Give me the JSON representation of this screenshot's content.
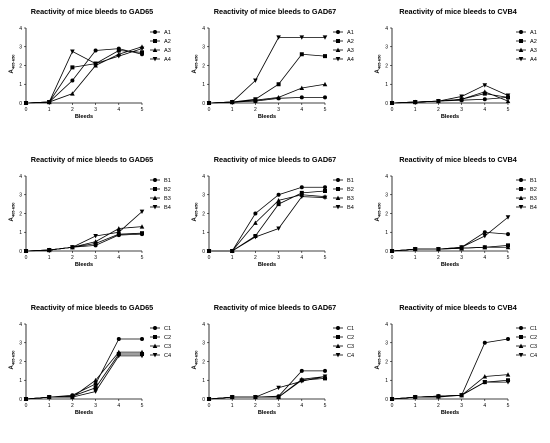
{
  "chart_data": [
    {
      "type": "line",
      "title": "Reactivity of mice bleeds to GAD65",
      "xlabel": "Bleeds",
      "ylabel": "A",
      "ylabel_sub": "405-650",
      "x": [
        0,
        1,
        2,
        3,
        4,
        5
      ],
      "xlim": [
        0,
        5
      ],
      "ylim": [
        0,
        4
      ],
      "series": [
        {
          "name": "A1",
          "marker": "circle",
          "values": [
            0,
            0.05,
            1.2,
            2.8,
            2.9,
            2.6
          ]
        },
        {
          "name": "A2",
          "marker": "square",
          "values": [
            0,
            0.05,
            1.9,
            2.1,
            2.8,
            2.7
          ]
        },
        {
          "name": "A3",
          "marker": "triangle-up",
          "values": [
            0,
            0.05,
            0.5,
            2.0,
            2.6,
            3.0
          ]
        },
        {
          "name": "A4",
          "marker": "triangle-down",
          "values": [
            0,
            0.05,
            2.75,
            2.1,
            2.5,
            2.9
          ]
        }
      ]
    },
    {
      "type": "line",
      "title": "Reactivity of mice bleeds to GAD67",
      "xlabel": "Bleeds",
      "ylabel": "A",
      "ylabel_sub": "405-650",
      "x": [
        0,
        1,
        2,
        3,
        4,
        5
      ],
      "xlim": [
        0,
        5
      ],
      "ylim": [
        0,
        4
      ],
      "series": [
        {
          "name": "A1",
          "marker": "circle",
          "values": [
            0,
            0.05,
            0.1,
            0.25,
            0.3,
            0.3
          ]
        },
        {
          "name": "A2",
          "marker": "square",
          "values": [
            0,
            0.05,
            0.2,
            1.0,
            2.6,
            2.5
          ]
        },
        {
          "name": "A3",
          "marker": "triangle-up",
          "values": [
            0,
            0.05,
            0.15,
            0.3,
            0.8,
            1.0
          ]
        },
        {
          "name": "A4",
          "marker": "triangle-down",
          "values": [
            0,
            0.05,
            1.2,
            3.5,
            3.5,
            3.5
          ]
        }
      ]
    },
    {
      "type": "line",
      "title": "Reactivity of mice bleeds to CVB4",
      "xlabel": "Bleeds",
      "ylabel": "A",
      "ylabel_sub": "405-650",
      "x": [
        0,
        1,
        2,
        3,
        4,
        5
      ],
      "xlim": [
        0,
        5
      ],
      "ylim": [
        0,
        4
      ],
      "series": [
        {
          "name": "A1",
          "marker": "circle",
          "values": [
            0,
            0.05,
            0.1,
            0.15,
            0.2,
            0.3
          ]
        },
        {
          "name": "A2",
          "marker": "square",
          "values": [
            0,
            0.05,
            0.1,
            0.2,
            0.5,
            0.3
          ]
        },
        {
          "name": "A3",
          "marker": "triangle-up",
          "values": [
            0,
            0.05,
            0.1,
            0.2,
            0.6,
            0.1
          ]
        },
        {
          "name": "A4",
          "marker": "triangle-down",
          "values": [
            0,
            0.05,
            0.1,
            0.35,
            0.95,
            0.4
          ]
        }
      ]
    },
    {
      "type": "line",
      "title": "Reactivity of mice bleeds to GAD65",
      "xlabel": "Bleeds",
      "ylabel": "A",
      "ylabel_sub": "405-650",
      "x": [
        0,
        1,
        2,
        3,
        4,
        5
      ],
      "xlim": [
        0,
        5
      ],
      "ylim": [
        0,
        4
      ],
      "series": [
        {
          "name": "B1",
          "marker": "circle",
          "values": [
            0,
            0.05,
            0.2,
            0.3,
            0.85,
            0.9
          ]
        },
        {
          "name": "B2",
          "marker": "square",
          "values": [
            0,
            0.05,
            0.2,
            0.4,
            0.9,
            0.95
          ]
        },
        {
          "name": "B3",
          "marker": "triangle-up",
          "values": [
            0,
            0.05,
            0.2,
            0.5,
            1.2,
            1.3
          ]
        },
        {
          "name": "B4",
          "marker": "triangle-down",
          "values": [
            0,
            0.05,
            0.2,
            0.8,
            1.0,
            2.1
          ]
        }
      ]
    },
    {
      "type": "line",
      "title": "Reactivity of mice bleeds to GAD67",
      "xlabel": "Bleeds",
      "ylabel": "A",
      "ylabel_sub": "405-650",
      "x": [
        0,
        1,
        2,
        3,
        4,
        5
      ],
      "xlim": [
        0,
        5
      ],
      "ylim": [
        0,
        4
      ],
      "series": [
        {
          "name": "B1",
          "marker": "circle",
          "values": [
            0,
            0,
            2.0,
            3.0,
            3.4,
            3.4
          ]
        },
        {
          "name": "B2",
          "marker": "square",
          "values": [
            0,
            0,
            0.8,
            2.5,
            3.1,
            3.2
          ]
        },
        {
          "name": "B3",
          "marker": "triangle-up",
          "values": [
            0,
            0,
            1.5,
            2.7,
            3.0,
            2.9
          ]
        },
        {
          "name": "B4",
          "marker": "triangle-down",
          "values": [
            0,
            0,
            0.75,
            1.2,
            2.9,
            2.85
          ]
        }
      ]
    },
    {
      "type": "line",
      "title": "Reactivity of mice bleeds to CVB4",
      "xlabel": "Bleeds",
      "ylabel": "A",
      "ylabel_sub": "405-650",
      "x": [
        0,
        1,
        2,
        3,
        4,
        5
      ],
      "xlim": [
        0,
        5
      ],
      "ylim": [
        0,
        4
      ],
      "series": [
        {
          "name": "B1",
          "marker": "circle",
          "values": [
            0,
            0.1,
            0.1,
            0.2,
            1.0,
            0.9
          ]
        },
        {
          "name": "B2",
          "marker": "square",
          "values": [
            0,
            0.1,
            0.1,
            0.15,
            0.2,
            0.3
          ]
        },
        {
          "name": "B3",
          "marker": "triangle-up",
          "values": [
            0,
            0.1,
            0.1,
            0.15,
            0.2,
            0.2
          ]
        },
        {
          "name": "B4",
          "marker": "triangle-down",
          "values": [
            0,
            0.1,
            0.1,
            0.2,
            0.8,
            1.8
          ]
        }
      ]
    },
    {
      "type": "line",
      "title": "Reactivity of mice bleeds to GAD65",
      "xlabel": "Bleeds",
      "ylabel": "A",
      "ylabel_sub": "405-650",
      "x": [
        0,
        1,
        2,
        3,
        4,
        5
      ],
      "xlim": [
        0,
        5
      ],
      "ylim": [
        0,
        4
      ],
      "series": [
        {
          "name": "C1",
          "marker": "circle",
          "values": [
            0,
            0.1,
            0.2,
            0.8,
            3.2,
            3.2
          ]
        },
        {
          "name": "C2",
          "marker": "square",
          "values": [
            0,
            0.1,
            0.15,
            0.6,
            2.4,
            2.4
          ]
        },
        {
          "name": "C3",
          "marker": "triangle-up",
          "values": [
            0,
            0.1,
            0.1,
            1.0,
            2.5,
            2.5
          ]
        },
        {
          "name": "C4",
          "marker": "triangle-down",
          "values": [
            0,
            0.1,
            0.1,
            0.4,
            2.3,
            2.3
          ]
        }
      ]
    },
    {
      "type": "line",
      "title": "Reactivity of mice bleeds to GAD67",
      "xlabel": "Bleeds",
      "ylabel": "A",
      "ylabel_sub": "405-650",
      "x": [
        0,
        1,
        2,
        3,
        4,
        5
      ],
      "xlim": [
        0,
        5
      ],
      "ylim": [
        0,
        4
      ],
      "series": [
        {
          "name": "C1",
          "marker": "circle",
          "values": [
            0,
            0.1,
            0.1,
            0.15,
            1.5,
            1.5
          ]
        },
        {
          "name": "C2",
          "marker": "square",
          "values": [
            0,
            0.1,
            0.1,
            0.1,
            1.0,
            1.1
          ]
        },
        {
          "name": "C3",
          "marker": "triangle-up",
          "values": [
            0,
            0.1,
            0.1,
            0.1,
            1.05,
            1.2
          ]
        },
        {
          "name": "C4",
          "marker": "triangle-down",
          "values": [
            0,
            0.1,
            0.1,
            0.6,
            0.95,
            1.2
          ]
        }
      ]
    },
    {
      "type": "line",
      "title": "Reactivity of mice bleeds to CVB4",
      "xlabel": "Bleeds",
      "ylabel": "A",
      "ylabel_sub": "405-650",
      "x": [
        0,
        1,
        2,
        3,
        4,
        5
      ],
      "xlim": [
        0,
        5
      ],
      "ylim": [
        0,
        4
      ],
      "series": [
        {
          "name": "C1",
          "marker": "circle",
          "values": [
            0,
            0.1,
            0.15,
            0.2,
            3.0,
            3.2
          ]
        },
        {
          "name": "C2",
          "marker": "square",
          "values": [
            0,
            0.1,
            0.15,
            0.2,
            0.9,
            1.0
          ]
        },
        {
          "name": "C3",
          "marker": "triangle-up",
          "values": [
            0,
            0.1,
            0.15,
            0.2,
            1.2,
            1.3
          ]
        },
        {
          "name": "C4",
          "marker": "triangle-down",
          "values": [
            0,
            0.1,
            0.1,
            0.2,
            0.9,
            0.9
          ]
        }
      ]
    }
  ]
}
